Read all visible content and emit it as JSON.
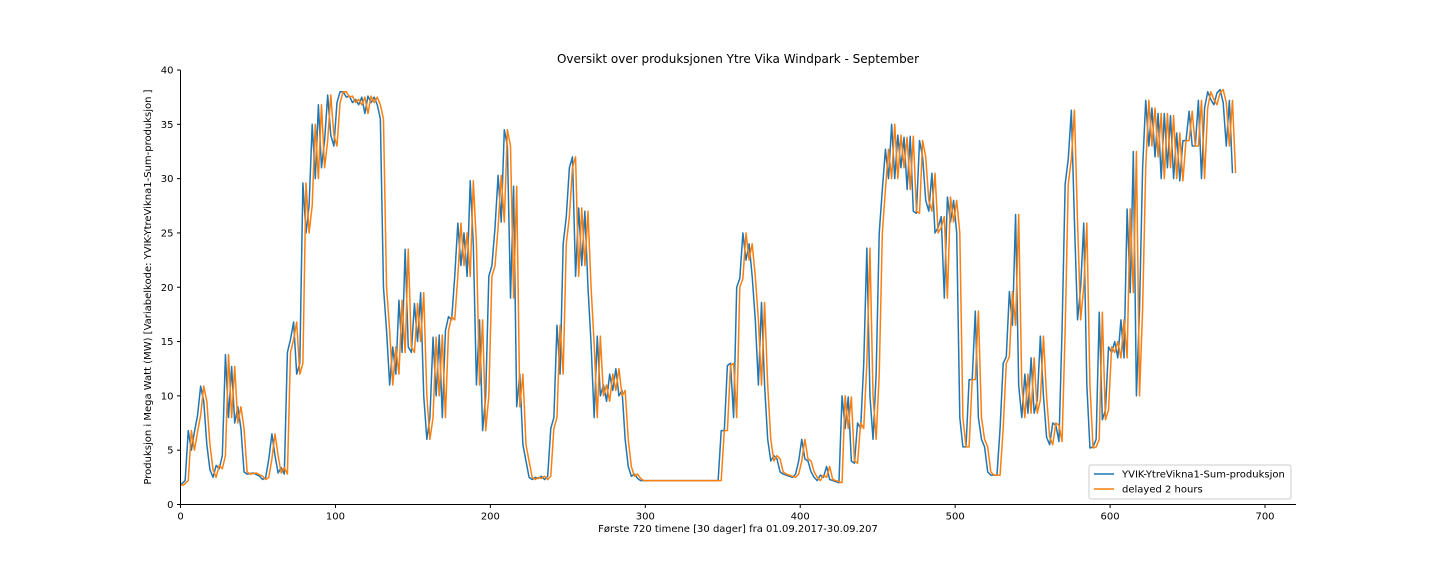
{
  "chart_data": {
    "type": "line",
    "title": "Oversikt over produksjonen Ytre Vika Windpark - September",
    "xlabel": "Første 720 timene [30 dager] fra 01.09.2017-30.09.207",
    "ylabel": "Produksjon i Mega Watt (MW) [Variabelkode: YVIK-YtreVikna1-Sum-produksjon ]",
    "xlim": [
      0,
      720
    ],
    "ylim": [
      0,
      40
    ],
    "x_ticks": [
      0,
      100,
      200,
      300,
      400,
      500,
      600,
      700
    ],
    "y_ticks": [
      0,
      5,
      10,
      15,
      20,
      25,
      30,
      35,
      40
    ],
    "grid": false,
    "legend_position": "lower-right",
    "series": [
      {
        "name": "YVIK-YtreVikna1-Sum-produksjon",
        "color": "#1f77b4",
        "points": [
          [
            0,
            1.8
          ],
          [
            3,
            2.2
          ],
          [
            5,
            6.8
          ],
          [
            7,
            5
          ],
          [
            9,
            6.7
          ],
          [
            11,
            8.2
          ],
          [
            13,
            10.9
          ],
          [
            15,
            9.5
          ],
          [
            17,
            5.5
          ],
          [
            19,
            3.2
          ],
          [
            21,
            2.5
          ],
          [
            23,
            3.6
          ],
          [
            25,
            3.3
          ],
          [
            27,
            4.5
          ],
          [
            29,
            13.8
          ],
          [
            31,
            8
          ],
          [
            33,
            12.7
          ],
          [
            35,
            7.5
          ],
          [
            37,
            9
          ],
          [
            39,
            7
          ],
          [
            41,
            3
          ],
          [
            43,
            2.8
          ],
          [
            47,
            2.9
          ],
          [
            51,
            2.6
          ],
          [
            53,
            2.3
          ],
          [
            55,
            2.5
          ],
          [
            57,
            4.2
          ],
          [
            59,
            6.5
          ],
          [
            61,
            4.5
          ],
          [
            63,
            2.9
          ],
          [
            65,
            3.4
          ],
          [
            67,
            2.8
          ],
          [
            69,
            14
          ],
          [
            71,
            15.2
          ],
          [
            73,
            16.8
          ],
          [
            75,
            12
          ],
          [
            77,
            13
          ],
          [
            79,
            29.6
          ],
          [
            81,
            25
          ],
          [
            83,
            27.5
          ],
          [
            85,
            35
          ],
          [
            87,
            30
          ],
          [
            89,
            36.8
          ],
          [
            91,
            31
          ],
          [
            93,
            33.5
          ],
          [
            95,
            37.7
          ],
          [
            97,
            34
          ],
          [
            99,
            33
          ],
          [
            101,
            37
          ],
          [
            103,
            38
          ],
          [
            105,
            38
          ],
          [
            107,
            37.5
          ],
          [
            109,
            37.6
          ],
          [
            111,
            37
          ],
          [
            113,
            37.3
          ],
          [
            115,
            36.8
          ],
          [
            117,
            37.5
          ],
          [
            119,
            36
          ],
          [
            121,
            37.6
          ],
          [
            123,
            37
          ],
          [
            125,
            37.5
          ],
          [
            127,
            36.8
          ],
          [
            129,
            35.5
          ],
          [
            131,
            20
          ],
          [
            133,
            16
          ],
          [
            135,
            11
          ],
          [
            137,
            14.5
          ],
          [
            139,
            12
          ],
          [
            141,
            18.8
          ],
          [
            143,
            14
          ],
          [
            145,
            23.5
          ],
          [
            147,
            14.5
          ],
          [
            149,
            14
          ],
          [
            151,
            18.5
          ],
          [
            153,
            15
          ],
          [
            155,
            19.5
          ],
          [
            157,
            10
          ],
          [
            159,
            6
          ],
          [
            161,
            8
          ],
          [
            163,
            15.4
          ],
          [
            165,
            10
          ],
          [
            167,
            15.6
          ],
          [
            169,
            8
          ],
          [
            171,
            16
          ],
          [
            173,
            17.3
          ],
          [
            175,
            17
          ],
          [
            177,
            21
          ],
          [
            179,
            25.9
          ],
          [
            181,
            22
          ],
          [
            183,
            25
          ],
          [
            185,
            21
          ],
          [
            187,
            29.8
          ],
          [
            189,
            24
          ],
          [
            191,
            11
          ],
          [
            193,
            17
          ],
          [
            195,
            6.8
          ],
          [
            197,
            10
          ],
          [
            199,
            21
          ],
          [
            201,
            22
          ],
          [
            203,
            25.5
          ],
          [
            205,
            30.3
          ],
          [
            207,
            26
          ],
          [
            209,
            34.5
          ],
          [
            211,
            33
          ],
          [
            213,
            19
          ],
          [
            215,
            29.3
          ],
          [
            217,
            9
          ],
          [
            219,
            12
          ],
          [
            221,
            5.5
          ],
          [
            223,
            4
          ],
          [
            225,
            2.5
          ],
          [
            227,
            2.3
          ],
          [
            229,
            2.5
          ],
          [
            231,
            2.4
          ],
          [
            233,
            2.6
          ],
          [
            235,
            2.3
          ],
          [
            237,
            2.6
          ],
          [
            239,
            7
          ],
          [
            241,
            8
          ],
          [
            243,
            16.5
          ],
          [
            245,
            12
          ],
          [
            247,
            24
          ],
          [
            249,
            26.5
          ],
          [
            251,
            31
          ],
          [
            253,
            32
          ],
          [
            255,
            21
          ],
          [
            257,
            27.3
          ],
          [
            259,
            22
          ],
          [
            261,
            27
          ],
          [
            263,
            20
          ],
          [
            265,
            14.8
          ],
          [
            267,
            8
          ],
          [
            269,
            15.5
          ],
          [
            271,
            10
          ],
          [
            273,
            11
          ],
          [
            275,
            9.5
          ],
          [
            277,
            12
          ],
          [
            279,
            10.5
          ],
          [
            281,
            12.5
          ],
          [
            283,
            10
          ],
          [
            285,
            10.5
          ],
          [
            287,
            6
          ],
          [
            289,
            3.5
          ],
          [
            291,
            2.6
          ],
          [
            293,
            2.8
          ],
          [
            295,
            2.4
          ],
          [
            297,
            2.2
          ],
          [
            305,
            2.2
          ],
          [
            315,
            2.2
          ],
          [
            335,
            2.2
          ],
          [
            347,
            2.2
          ],
          [
            349,
            6.8
          ],
          [
            351,
            6.8
          ],
          [
            353,
            12.8
          ],
          [
            355,
            13
          ],
          [
            357,
            8
          ],
          [
            359,
            20
          ],
          [
            361,
            20.8
          ],
          [
            363,
            25
          ],
          [
            365,
            22.5
          ],
          [
            367,
            24
          ],
          [
            369,
            21
          ],
          [
            371,
            17
          ],
          [
            373,
            11
          ],
          [
            375,
            18.6
          ],
          [
            377,
            11
          ],
          [
            379,
            6
          ],
          [
            381,
            4
          ],
          [
            383,
            4.5
          ],
          [
            385,
            4.2
          ],
          [
            387,
            3
          ],
          [
            389,
            2.8
          ],
          [
            391,
            2.7
          ],
          [
            393,
            2.6
          ],
          [
            395,
            2.5
          ],
          [
            397,
            2.8
          ],
          [
            399,
            4
          ],
          [
            401,
            6
          ],
          [
            403,
            4.2
          ],
          [
            405,
            4
          ],
          [
            407,
            3
          ],
          [
            409,
            2.5
          ],
          [
            411,
            2.2
          ],
          [
            413,
            2.7
          ],
          [
            415,
            2.5
          ],
          [
            417,
            3.5
          ],
          [
            419,
            2.3
          ],
          [
            421,
            2.2
          ],
          [
            423,
            2.1
          ],
          [
            425,
            2
          ],
          [
            427,
            10
          ],
          [
            429,
            7
          ],
          [
            431,
            9.9
          ],
          [
            433,
            4
          ],
          [
            435,
            3.8
          ],
          [
            437,
            7.5
          ],
          [
            439,
            7
          ],
          [
            441,
            13
          ],
          [
            443,
            23.6
          ],
          [
            445,
            10
          ],
          [
            447,
            6
          ],
          [
            449,
            12
          ],
          [
            451,
            25
          ],
          [
            453,
            29
          ],
          [
            455,
            32.7
          ],
          [
            457,
            30
          ],
          [
            459,
            35
          ],
          [
            461,
            30
          ],
          [
            463,
            34
          ],
          [
            465,
            31
          ],
          [
            467,
            33.8
          ],
          [
            469,
            29
          ],
          [
            471,
            33.9
          ],
          [
            473,
            27
          ],
          [
            475,
            26.8
          ],
          [
            477,
            33.5
          ],
          [
            479,
            32
          ],
          [
            481,
            28
          ],
          [
            483,
            27
          ],
          [
            485,
            30.5
          ],
          [
            487,
            25
          ],
          [
            489,
            25.5
          ],
          [
            491,
            26.5
          ],
          [
            493,
            19
          ],
          [
            495,
            28.3
          ],
          [
            497,
            26
          ],
          [
            499,
            28
          ],
          [
            501,
            25
          ],
          [
            503,
            8
          ],
          [
            505,
            5.3
          ],
          [
            507,
            5.3
          ],
          [
            509,
            11.5
          ],
          [
            511,
            11.5
          ],
          [
            513,
            17.8
          ],
          [
            515,
            8
          ],
          [
            517,
            6
          ],
          [
            519,
            5.3
          ],
          [
            521,
            3
          ],
          [
            523,
            2.7
          ],
          [
            527,
            2.7
          ],
          [
            529,
            7
          ],
          [
            531,
            13
          ],
          [
            533,
            13.6
          ],
          [
            535,
            19.6
          ],
          [
            537,
            16.5
          ],
          [
            539,
            26.7
          ],
          [
            541,
            11
          ],
          [
            543,
            8
          ],
          [
            545,
            12
          ],
          [
            547,
            8.4
          ],
          [
            549,
            13.5
          ],
          [
            551,
            8.4
          ],
          [
            553,
            9.6
          ],
          [
            555,
            15.5
          ],
          [
            557,
            10
          ],
          [
            559,
            6.2
          ],
          [
            561,
            5.5
          ],
          [
            563,
            7.5
          ],
          [
            565,
            7.3
          ],
          [
            567,
            5.8
          ],
          [
            569,
            16
          ],
          [
            571,
            29.5
          ],
          [
            573,
            31.8
          ],
          [
            575,
            36.3
          ],
          [
            577,
            26
          ],
          [
            579,
            17
          ],
          [
            581,
            20
          ],
          [
            583,
            25.9
          ],
          [
            585,
            11
          ],
          [
            587,
            5.2
          ],
          [
            589,
            5.3
          ],
          [
            591,
            6
          ],
          [
            593,
            17.7
          ],
          [
            595,
            7.8
          ],
          [
            597,
            8.7
          ],
          [
            599,
            14.5
          ],
          [
            601,
            14
          ],
          [
            603,
            15
          ],
          [
            605,
            13.5
          ],
          [
            607,
            17
          ],
          [
            609,
            13.5
          ],
          [
            611,
            27.2
          ],
          [
            613,
            19.5
          ],
          [
            615,
            32.5
          ],
          [
            617,
            10
          ],
          [
            619,
            18
          ],
          [
            621,
            31
          ],
          [
            623,
            37.2
          ],
          [
            625,
            33
          ],
          [
            627,
            36.5
          ],
          [
            629,
            32
          ],
          [
            631,
            36
          ],
          [
            633,
            30
          ],
          [
            635,
            36
          ],
          [
            637,
            31
          ],
          [
            639,
            35.8
          ],
          [
            641,
            30
          ],
          [
            643,
            34.2
          ],
          [
            645,
            29.8
          ],
          [
            647,
            33.5
          ],
          [
            649,
            33.5
          ],
          [
            651,
            36.2
          ],
          [
            653,
            33
          ],
          [
            655,
            33
          ],
          [
            657,
            37.2
          ],
          [
            659,
            30
          ],
          [
            661,
            36.5
          ],
          [
            663,
            38
          ],
          [
            665,
            37.3
          ],
          [
            667,
            36.8
          ],
          [
            669,
            37.9
          ],
          [
            671,
            38.2
          ],
          [
            673,
            37
          ],
          [
            675,
            33
          ],
          [
            677,
            37.2
          ],
          [
            679,
            30.5
          ]
        ]
      },
      {
        "name": "delayed 2 hours",
        "color": "#ff7f0e",
        "points": []
      }
    ]
  }
}
